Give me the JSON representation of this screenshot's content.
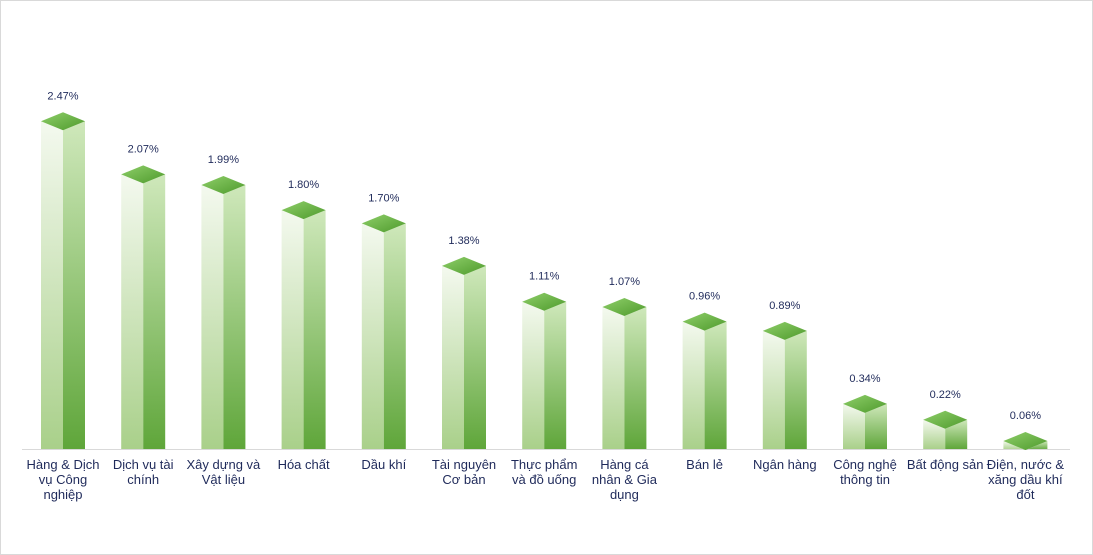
{
  "chart_data": {
    "type": "bar",
    "categories": [
      [
        "Hàng & Dịch",
        "vụ Công",
        "nghiệp"
      ],
      [
        "Dịch vụ tài",
        "chính"
      ],
      [
        "Xây dựng và",
        "Vật liệu"
      ],
      [
        "Hóa chất"
      ],
      [
        "Dầu khí"
      ],
      [
        "Tài nguyên",
        "Cơ bản"
      ],
      [
        "Thực phẩm",
        "và đồ uống"
      ],
      [
        "Hàng cá",
        "nhân & Gia",
        "dụng"
      ],
      [
        "Bán lẻ"
      ],
      [
        "Ngân hàng"
      ],
      [
        "Công nghệ",
        "thông tin"
      ],
      [
        "Bất động sản"
      ],
      [
        "Điện, nước &",
        "xăng dầu khí",
        "đốt"
      ]
    ],
    "values": [
      2.47,
      2.07,
      1.99,
      1.8,
      1.7,
      1.38,
      1.11,
      1.07,
      0.96,
      0.89,
      0.34,
      0.22,
      0.06
    ],
    "value_labels": [
      "2.47%",
      "2.07%",
      "1.99%",
      "1.80%",
      "1.70%",
      "1.38%",
      "1.11%",
      "1.07%",
      "0.96%",
      "0.89%",
      "0.34%",
      "0.22%",
      "0.06%"
    ],
    "title": "",
    "xlabel": "",
    "ylabel": "",
    "ylim": [
      0,
      2.6
    ],
    "grid": false,
    "legend": "none",
    "bar_style": "3d-column",
    "colors": {
      "top_light": "#8fcf6a",
      "top_dark": "#4e9a2c",
      "front_light": "#f4f9ef",
      "front_dark": "#a9d08a",
      "side_light": "#cfe8bb",
      "side_dark": "#5fa63a",
      "axis": "#d9d9d9",
      "label": "#1f2a5a"
    }
  }
}
